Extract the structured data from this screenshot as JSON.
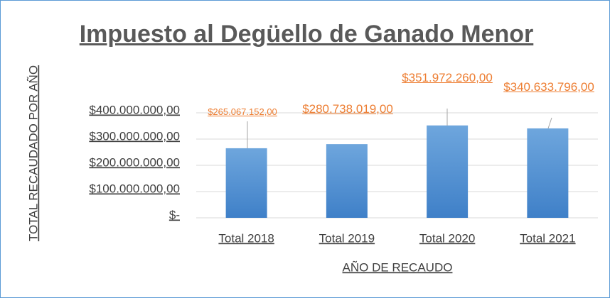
{
  "chart_data": {
    "type": "bar",
    "title": "Impuesto al Degüello de Ganado Menor",
    "y_label": "TOTAL RECAUDADO POR AÑO",
    "x_label": "AÑO DE RECAUDO",
    "categories": [
      "Total 2018",
      "Total 2019",
      "Total 2020",
      "Total 2021"
    ],
    "values": [
      265067152,
      280738019,
      351972260,
      340633796
    ],
    "value_labels": [
      "$265.067.152,00",
      "$280.738.019,00",
      "$351.972.260,00",
      "$340.633.796,00"
    ],
    "color": "#4a89cf",
    "label_color": "#ed7d31",
    "ylim": [
      0,
      400000000
    ],
    "yticks": [
      {
        "value": 0,
        "label": "$-"
      },
      {
        "value": 100000000,
        "label": "$100.000.000,00"
      },
      {
        "value": 200000000,
        "label": "$200.000.000,00"
      },
      {
        "value": 300000000,
        "label": "$300.000.000,00"
      },
      {
        "value": 400000000,
        "label": "$400.000.000,00"
      }
    ],
    "grid": true
  }
}
